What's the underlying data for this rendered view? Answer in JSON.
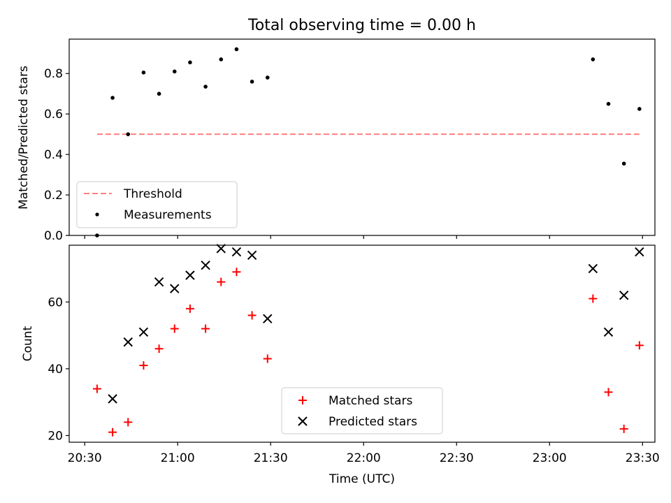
{
  "figure": {
    "title": "Total observing time = 0.00 h",
    "xlabel": "Time (UTC)"
  },
  "colors": {
    "threshold": "#ff7f7f",
    "measurements": "#000000",
    "matched": "#ff0000",
    "predicted": "#000000",
    "axes": "#000000"
  },
  "chart_data": [
    {
      "type": "scatter",
      "ylabel": "Matched/Predicted stars",
      "xlim": [
        "20:25",
        "23:34"
      ],
      "ylim": [
        0,
        0.97
      ],
      "yticks": [
        0.0,
        0.2,
        0.4,
        0.6,
        0.8
      ],
      "ytick_labels": [
        "0.0",
        "0.2",
        "0.4",
        "0.6",
        "0.8"
      ],
      "legend": {
        "position": "lower-left"
      },
      "series": [
        {
          "name": "Threshold",
          "kind": "line",
          "style": "dashed",
          "x": [
            "20:34",
            "23:29"
          ],
          "y": [
            0.5,
            0.5
          ]
        },
        {
          "name": "Measurements",
          "kind": "points",
          "x": [
            "20:34",
            "20:39",
            "20:44",
            "20:49",
            "20:54",
            "20:59",
            "21:04",
            "21:09",
            "21:14",
            "21:19",
            "21:24",
            "21:29",
            "23:14",
            "23:19",
            "23:24",
            "23:29"
          ],
          "y": [
            0.0,
            0.68,
            0.5,
            0.805,
            0.7,
            0.81,
            0.855,
            0.735,
            0.87,
            0.92,
            0.76,
            0.78,
            0.87,
            0.65,
            0.355,
            0.625
          ]
        }
      ]
    },
    {
      "type": "scatter",
      "ylabel": "Count",
      "xlabel": "Time (UTC)",
      "xlim": [
        "20:25",
        "23:34"
      ],
      "ylim": [
        18,
        77
      ],
      "yticks": [
        20,
        40,
        60
      ],
      "ytick_labels": [
        "20",
        "40",
        "60"
      ],
      "xticks": [
        "20:30",
        "21:00",
        "21:30",
        "22:00",
        "22:30",
        "23:00",
        "23:30"
      ],
      "xtick_labels": [
        "20:30",
        "21:00",
        "21:30",
        "22:00",
        "22:30",
        "23:00",
        "23:30"
      ],
      "legend": {
        "position": "lower-center"
      },
      "series": [
        {
          "name": "Matched stars",
          "marker": "plus",
          "x": [
            "20:34",
            "20:39",
            "20:44",
            "20:49",
            "20:54",
            "20:59",
            "21:04",
            "21:09",
            "21:14",
            "21:19",
            "21:24",
            "21:29",
            "23:14",
            "23:19",
            "23:24",
            "23:29"
          ],
          "y": [
            34,
            21,
            24,
            41,
            46,
            52,
            58,
            52,
            66,
            69,
            56,
            43,
            61,
            33,
            22,
            47
          ]
        },
        {
          "name": "Predicted stars",
          "marker": "x",
          "x": [
            "20:39",
            "20:44",
            "20:49",
            "20:54",
            "20:59",
            "21:04",
            "21:09",
            "21:14",
            "21:19",
            "21:24",
            "21:29",
            "23:14",
            "23:19",
            "23:24",
            "23:29"
          ],
          "y": [
            31,
            48,
            51,
            66,
            64,
            68,
            71,
            76,
            75,
            74,
            55,
            70,
            51,
            62,
            75
          ]
        }
      ]
    }
  ]
}
